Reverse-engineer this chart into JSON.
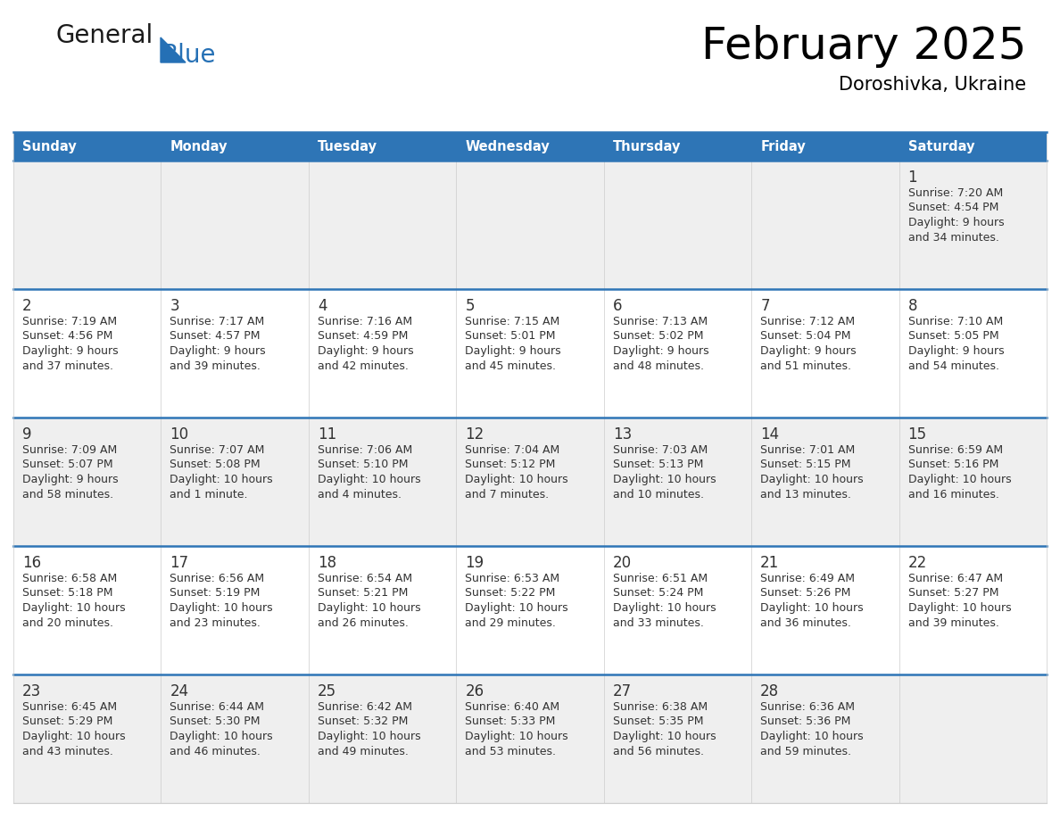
{
  "title": "February 2025",
  "subtitle": "Doroshivka, Ukraine",
  "days_of_week": [
    "Sunday",
    "Monday",
    "Tuesday",
    "Wednesday",
    "Thursday",
    "Friday",
    "Saturday"
  ],
  "header_bg": "#2E75B6",
  "header_text_color": "#FFFFFF",
  "cell_bg_light": "#EFEFEF",
  "cell_bg_white": "#FFFFFF",
  "divider_color": "#2E75B6",
  "text_color": "#333333",
  "day_num_color": "#333333",
  "calendar_data": [
    [
      null,
      null,
      null,
      null,
      null,
      null,
      {
        "day": 1,
        "sunrise": "7:20 AM",
        "sunset": "4:54 PM",
        "daylight": "9 hours",
        "daylight2": "and 34 minutes."
      }
    ],
    [
      {
        "day": 2,
        "sunrise": "7:19 AM",
        "sunset": "4:56 PM",
        "daylight": "9 hours",
        "daylight2": "and 37 minutes."
      },
      {
        "day": 3,
        "sunrise": "7:17 AM",
        "sunset": "4:57 PM",
        "daylight": "9 hours",
        "daylight2": "and 39 minutes."
      },
      {
        "day": 4,
        "sunrise": "7:16 AM",
        "sunset": "4:59 PM",
        "daylight": "9 hours",
        "daylight2": "and 42 minutes."
      },
      {
        "day": 5,
        "sunrise": "7:15 AM",
        "sunset": "5:01 PM",
        "daylight": "9 hours",
        "daylight2": "and 45 minutes."
      },
      {
        "day": 6,
        "sunrise": "7:13 AM",
        "sunset": "5:02 PM",
        "daylight": "9 hours",
        "daylight2": "and 48 minutes."
      },
      {
        "day": 7,
        "sunrise": "7:12 AM",
        "sunset": "5:04 PM",
        "daylight": "9 hours",
        "daylight2": "and 51 minutes."
      },
      {
        "day": 8,
        "sunrise": "7:10 AM",
        "sunset": "5:05 PM",
        "daylight": "9 hours",
        "daylight2": "and 54 minutes."
      }
    ],
    [
      {
        "day": 9,
        "sunrise": "7:09 AM",
        "sunset": "5:07 PM",
        "daylight": "9 hours",
        "daylight2": "and 58 minutes."
      },
      {
        "day": 10,
        "sunrise": "7:07 AM",
        "sunset": "5:08 PM",
        "daylight": "10 hours",
        "daylight2": "and 1 minute."
      },
      {
        "day": 11,
        "sunrise": "7:06 AM",
        "sunset": "5:10 PM",
        "daylight": "10 hours",
        "daylight2": "and 4 minutes."
      },
      {
        "day": 12,
        "sunrise": "7:04 AM",
        "sunset": "5:12 PM",
        "daylight": "10 hours",
        "daylight2": "and 7 minutes."
      },
      {
        "day": 13,
        "sunrise": "7:03 AM",
        "sunset": "5:13 PM",
        "daylight": "10 hours",
        "daylight2": "and 10 minutes."
      },
      {
        "day": 14,
        "sunrise": "7:01 AM",
        "sunset": "5:15 PM",
        "daylight": "10 hours",
        "daylight2": "and 13 minutes."
      },
      {
        "day": 15,
        "sunrise": "6:59 AM",
        "sunset": "5:16 PM",
        "daylight": "10 hours",
        "daylight2": "and 16 minutes."
      }
    ],
    [
      {
        "day": 16,
        "sunrise": "6:58 AM",
        "sunset": "5:18 PM",
        "daylight": "10 hours",
        "daylight2": "and 20 minutes."
      },
      {
        "day": 17,
        "sunrise": "6:56 AM",
        "sunset": "5:19 PM",
        "daylight": "10 hours",
        "daylight2": "and 23 minutes."
      },
      {
        "day": 18,
        "sunrise": "6:54 AM",
        "sunset": "5:21 PM",
        "daylight": "10 hours",
        "daylight2": "and 26 minutes."
      },
      {
        "day": 19,
        "sunrise": "6:53 AM",
        "sunset": "5:22 PM",
        "daylight": "10 hours",
        "daylight2": "and 29 minutes."
      },
      {
        "day": 20,
        "sunrise": "6:51 AM",
        "sunset": "5:24 PM",
        "daylight": "10 hours",
        "daylight2": "and 33 minutes."
      },
      {
        "day": 21,
        "sunrise": "6:49 AM",
        "sunset": "5:26 PM",
        "daylight": "10 hours",
        "daylight2": "and 36 minutes."
      },
      {
        "day": 22,
        "sunrise": "6:47 AM",
        "sunset": "5:27 PM",
        "daylight": "10 hours",
        "daylight2": "and 39 minutes."
      }
    ],
    [
      {
        "day": 23,
        "sunrise": "6:45 AM",
        "sunset": "5:29 PM",
        "daylight": "10 hours",
        "daylight2": "and 43 minutes."
      },
      {
        "day": 24,
        "sunrise": "6:44 AM",
        "sunset": "5:30 PM",
        "daylight": "10 hours",
        "daylight2": "and 46 minutes."
      },
      {
        "day": 25,
        "sunrise": "6:42 AM",
        "sunset": "5:32 PM",
        "daylight": "10 hours",
        "daylight2": "and 49 minutes."
      },
      {
        "day": 26,
        "sunrise": "6:40 AM",
        "sunset": "5:33 PM",
        "daylight": "10 hours",
        "daylight2": "and 53 minutes."
      },
      {
        "day": 27,
        "sunrise": "6:38 AM",
        "sunset": "5:35 PM",
        "daylight": "10 hours",
        "daylight2": "and 56 minutes."
      },
      {
        "day": 28,
        "sunrise": "6:36 AM",
        "sunset": "5:36 PM",
        "daylight": "10 hours",
        "daylight2": "and 59 minutes."
      },
      null
    ]
  ],
  "logo_color_general": "#1a1a1a",
  "logo_color_blue": "#2570B5"
}
